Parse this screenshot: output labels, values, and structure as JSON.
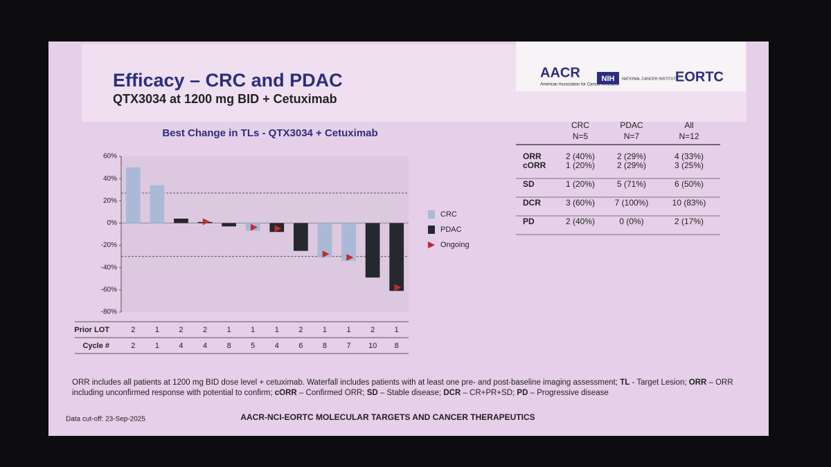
{
  "header": {
    "title": "Efficacy – CRC and PDAC",
    "subtitle": "QTX3034 at 1200 mg BID + Cetuximab",
    "logos": {
      "aacr": "AACR",
      "aacr_sub": "American Association for Cancer Research",
      "nih": "NIH",
      "nci": "NATIONAL CANCER INSTITUTE",
      "eortc": "EORTC"
    }
  },
  "chart_data": {
    "type": "waterfall",
    "title": "Best Change in TLs - QTX3034 + Cetuximab",
    "categories": [
      null,
      null,
      null,
      null,
      null,
      null,
      null,
      null,
      null,
      null,
      null,
      null
    ],
    "series": [
      {
        "name": "CRC",
        "color": "#a9b9d6",
        "values": [
          50,
          34,
          null,
          null,
          null,
          -7,
          null,
          null,
          -31,
          -34,
          null,
          null
        ]
      },
      {
        "name": "PDAC",
        "color": "#25282e",
        "values": [
          null,
          null,
          4,
          1,
          -3,
          null,
          -8,
          -25,
          null,
          null,
          -49,
          -61
        ]
      }
    ],
    "ongoing": {
      "name": "Ongoing",
      "color": "#c62a2a",
      "flags": [
        false,
        false,
        false,
        true,
        false,
        true,
        true,
        false,
        true,
        true,
        false,
        true
      ]
    },
    "reference_lines": [
      27,
      -30
    ],
    "ylim": [
      -80,
      60
    ],
    "yticks": [
      {
        "value": -80,
        "label": "-80%"
      },
      {
        "value": -60,
        "label": "-60%"
      },
      {
        "value": -40,
        "label": "-40%"
      },
      {
        "value": -20,
        "label": "-20%"
      },
      {
        "value": 0,
        "label": "0%"
      },
      {
        "value": 20,
        "label": "20%"
      },
      {
        "value": 40,
        "label": "40%"
      },
      {
        "value": 60,
        "label": "60%"
      }
    ],
    "rows": [
      {
        "label": "Prior LOT",
        "values": [
          2,
          1,
          2,
          2,
          1,
          1,
          1,
          2,
          1,
          1,
          2,
          1
        ]
      },
      {
        "label": "Cycle #",
        "values": [
          2,
          1,
          4,
          4,
          8,
          5,
          4,
          6,
          8,
          7,
          10,
          8
        ]
      }
    ]
  },
  "table": {
    "columns": [
      {
        "name": "CRC",
        "n": "N=5"
      },
      {
        "name": "PDAC",
        "n": "N=7"
      },
      {
        "name": "All",
        "n": "N=12"
      }
    ],
    "groups": [
      [
        [
          "ORR",
          "2 (40%)",
          "2 (29%)",
          "4 (33%)"
        ],
        [
          "cORR",
          "1 (20%)",
          "2 (29%)",
          "3 (25%)"
        ]
      ],
      [
        [
          "SD",
          "1 (20%)",
          "5 (71%)",
          "6 (50%)"
        ]
      ],
      [
        [
          "DCR",
          "3 (60%)",
          "7 (100%)",
          "10 (83%)"
        ]
      ],
      [
        [
          "PD",
          "2 (40%)",
          "0 (0%)",
          "2 (17%)"
        ]
      ]
    ]
  },
  "footnote": [
    {
      "text": "ORR includes all patients at 1200 mg BID dose level + cetuximab. Waterfall includes patients with at least one pre- and post-baseline imaging assessment; ",
      "bold": false
    },
    {
      "text": "TL",
      "bold": true
    },
    {
      "text": " - Target Lesion; ",
      "bold": false
    },
    {
      "text": "ORR",
      "bold": true
    },
    {
      "text": " – ORR including unconfirmed response with potential to confirm; ",
      "bold": false
    },
    {
      "text": "cORR",
      "bold": true
    },
    {
      "text": " – Confirmed ORR; ",
      "bold": false
    },
    {
      "text": "SD",
      "bold": true
    },
    {
      "text": " – Stable disease; ",
      "bold": false
    },
    {
      "text": "DCR",
      "bold": true
    },
    {
      "text": " – CR+PR+SD; ",
      "bold": false
    },
    {
      "text": "PD",
      "bold": true
    },
    {
      "text": " – Progressive disease",
      "bold": false
    }
  ],
  "cutoff": "Data cut-off: 23-Sep-2025",
  "footer": "AACR-NCI-EORTC MOLECULAR TARGETS AND CANCER THERAPEUTICS"
}
